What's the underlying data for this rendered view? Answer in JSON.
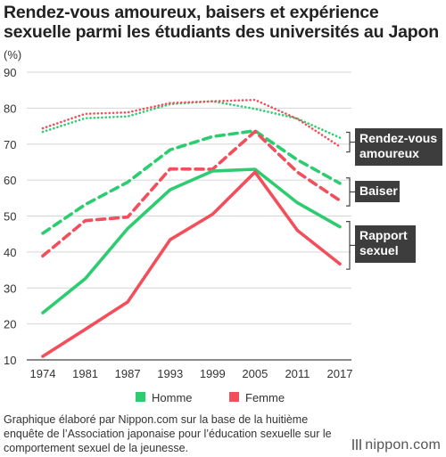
{
  "title": "Rendez-vous amoureux, baisers et expérience sexuelle parmi les étudiants des universités au Japon",
  "footnote": "Graphique élaboré par Nippon.com sur la base de la huitième enquête de l’Association japonaise pour l’éducation sexuelle sur le comportement sexuel de la jeunesse.",
  "logo": "nippon.com",
  "chart_data": {
    "type": "line",
    "unit_label": "(%)",
    "x": [
      "1974",
      "1981",
      "1987",
      "1993",
      "1999",
      "2005",
      "2011",
      "2017"
    ],
    "ylim": [
      10,
      90
    ],
    "yticks": [
      10,
      20,
      30,
      40,
      50,
      60,
      70,
      80,
      90
    ],
    "grid": true,
    "series": [
      {
        "group": "Rendez-vous amoureux",
        "gender": "Homme",
        "style": "dotted",
        "color": "#2ecc71",
        "values": [
          73.4,
          77.2,
          77.7,
          81.1,
          81.9,
          79.8,
          77.1,
          71.8
        ]
      },
      {
        "group": "Rendez-vous amoureux",
        "gender": "Femme",
        "style": "dotted",
        "color": "#f24e5c",
        "values": [
          74.4,
          78.4,
          78.8,
          81.4,
          81.9,
          82.3,
          77.0,
          69.3
        ]
      },
      {
        "group": "Baiser",
        "gender": "Homme",
        "style": "dashed",
        "color": "#2ecc71",
        "values": [
          45.2,
          53.2,
          59.4,
          68.4,
          72.1,
          73.7,
          65.6,
          59.1
        ]
      },
      {
        "group": "Baiser",
        "gender": "Femme",
        "style": "dashed",
        "color": "#f24e5c",
        "values": [
          38.9,
          48.7,
          49.7,
          63.1,
          63.0,
          73.5,
          62.2,
          54.3
        ]
      },
      {
        "group": "Rapport sexuel",
        "gender": "Homme",
        "style": "solid",
        "color": "#2ecc71",
        "values": [
          23.1,
          32.6,
          46.5,
          57.3,
          62.5,
          63.0,
          53.7,
          47.0
        ]
      },
      {
        "group": "Rapport sexuel",
        "gender": "Femme",
        "style": "solid",
        "color": "#f24e5c",
        "values": [
          11.0,
          18.5,
          26.1,
          43.4,
          50.5,
          62.2,
          46.0,
          36.7
        ]
      }
    ],
    "legend": {
      "position": "bottom",
      "items": [
        {
          "label": "Homme",
          "color": "#2ecc71"
        },
        {
          "label": "Femme",
          "color": "#f24e5c"
        }
      ]
    },
    "group_labels": [
      {
        "text": "Rendez-vous amoureux",
        "lines": [
          "Rendez-vous",
          "amoureux"
        ],
        "group": "Rendez-vous amoureux"
      },
      {
        "text": "Baiser",
        "lines": [
          "Baiser"
        ],
        "group": "Baiser"
      },
      {
        "text": "Rapport sexuel",
        "lines": [
          "Rapport",
          "sexuel"
        ],
        "group": "Rapport sexuel"
      }
    ]
  }
}
